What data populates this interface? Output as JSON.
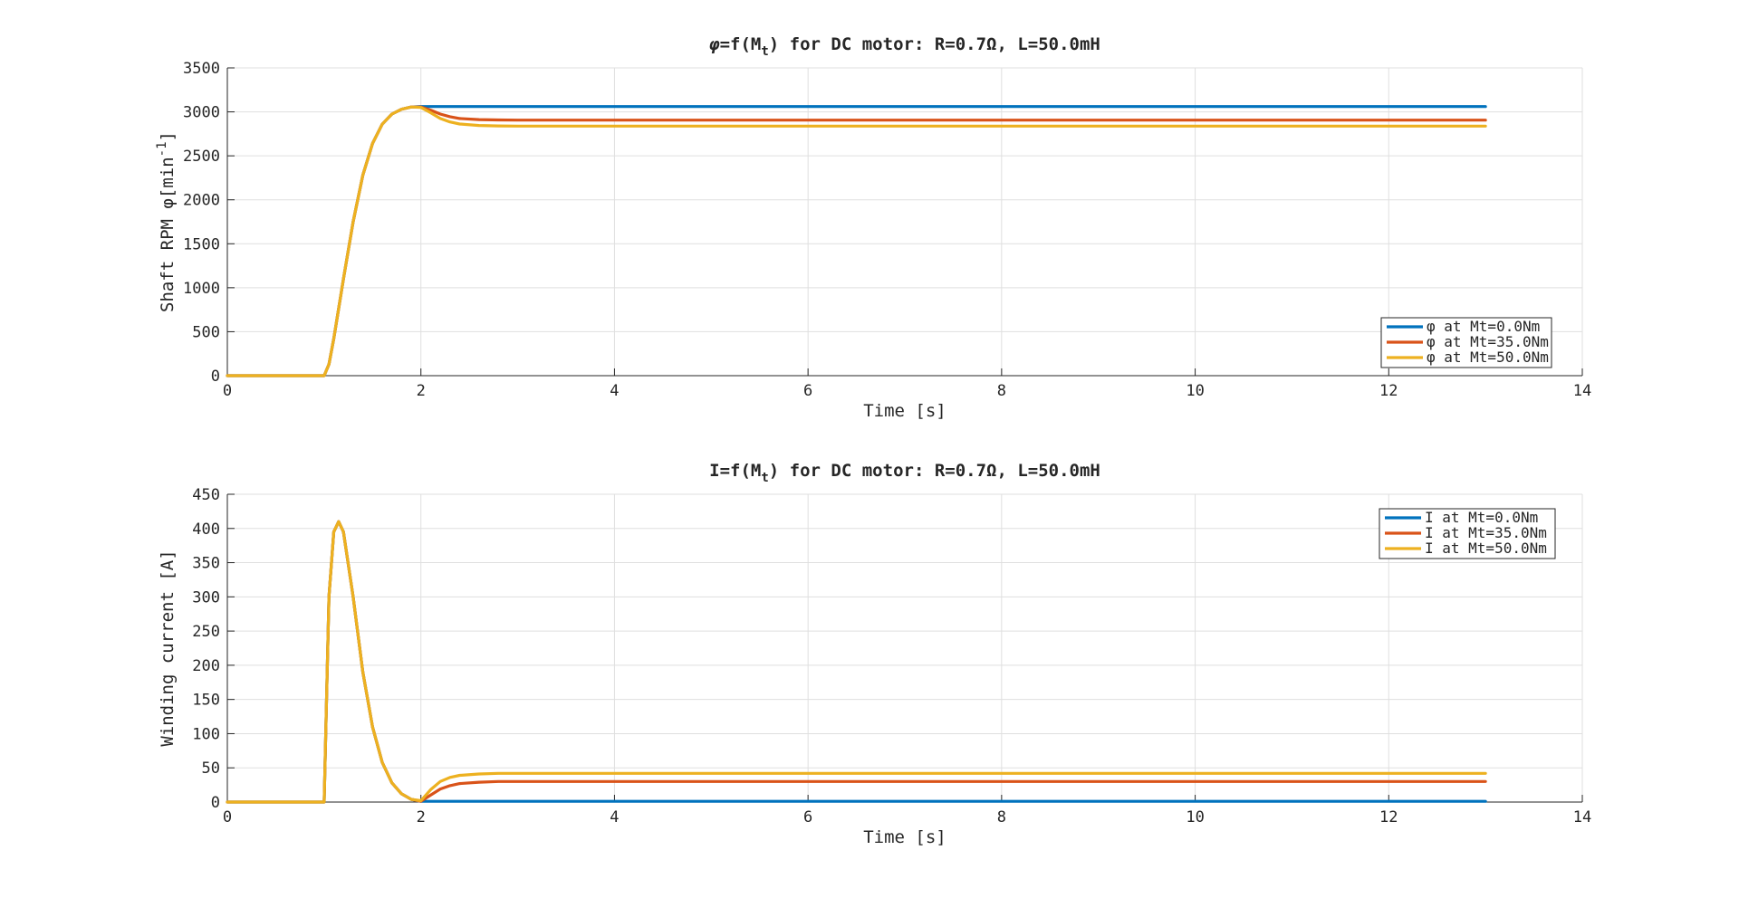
{
  "chart_data": [
    {
      "type": "line",
      "title_prefix": "φ",
      "title_main": "=f(M",
      "title_sub": "t",
      "title_rest": ") for DC motor: R=0.7Ω, L=50.0mH",
      "xlabel": "Time [s]",
      "ylabel_main": "Shaft RPM φ[min",
      "ylabel_sup": "-1",
      "ylabel_end": "]",
      "xlim": [
        0,
        14
      ],
      "ylim": [
        0,
        3500
      ],
      "xticks": [
        0,
        2,
        4,
        6,
        8,
        10,
        12,
        14
      ],
      "yticks": [
        0,
        500,
        1000,
        1500,
        2000,
        2500,
        3000,
        3500
      ],
      "grid": true,
      "legend_position": "bottom-right",
      "series": [
        {
          "name": "φ  at Mt=0.0Nm",
          "color": "#0072BD",
          "x": [
            0,
            1.0,
            1.05,
            1.1,
            1.2,
            1.3,
            1.4,
            1.5,
            1.6,
            1.7,
            1.8,
            1.9,
            2.0,
            13.0
          ],
          "y": [
            0,
            0,
            130,
            420,
            1100,
            1750,
            2280,
            2640,
            2860,
            2975,
            3030,
            3055,
            3060,
            3060
          ]
        },
        {
          "name": "φ  at Mt=35.0Nm",
          "color": "#D95319",
          "x": [
            0,
            1.0,
            1.05,
            1.1,
            1.2,
            1.3,
            1.4,
            1.5,
            1.6,
            1.7,
            1.8,
            1.9,
            2.0,
            2.1,
            2.2,
            2.3,
            2.4,
            2.6,
            2.8,
            3.0,
            13.0
          ],
          "y": [
            0,
            0,
            130,
            420,
            1100,
            1750,
            2280,
            2640,
            2860,
            2975,
            3030,
            3055,
            3055,
            3020,
            2975,
            2945,
            2925,
            2912,
            2908,
            2906,
            2906
          ]
        },
        {
          "name": "φ  at Mt=50.0Nm",
          "color": "#EDB120",
          "x": [
            0,
            1.0,
            1.05,
            1.1,
            1.2,
            1.3,
            1.4,
            1.5,
            1.6,
            1.7,
            1.8,
            1.9,
            2.0,
            2.1,
            2.2,
            2.3,
            2.4,
            2.6,
            2.8,
            3.0,
            13.0
          ],
          "y": [
            0,
            0,
            130,
            420,
            1100,
            1750,
            2280,
            2640,
            2860,
            2975,
            3030,
            3055,
            3050,
            2990,
            2925,
            2885,
            2862,
            2845,
            2840,
            2838,
            2838
          ]
        }
      ]
    },
    {
      "type": "line",
      "title_prefix": "",
      "title_main": "I=f(M",
      "title_sub": "t",
      "title_rest": ") for DC motor: R=0.7Ω, L=50.0mH",
      "xlabel": "Time [s]",
      "ylabel_main": "Winding current [A]",
      "ylabel_sup": "",
      "ylabel_end": "",
      "xlim": [
        0,
        14
      ],
      "ylim": [
        0,
        450
      ],
      "xticks": [
        0,
        2,
        4,
        6,
        8,
        10,
        12,
        14
      ],
      "yticks": [
        0,
        50,
        100,
        150,
        200,
        250,
        300,
        350,
        400,
        450
      ],
      "grid": true,
      "legend_position": "top-right",
      "series": [
        {
          "name": "I at Mt=0.0Nm",
          "color": "#0072BD",
          "x": [
            0,
            1.0,
            1.02,
            1.05,
            1.1,
            1.15,
            1.2,
            1.3,
            1.4,
            1.5,
            1.6,
            1.7,
            1.8,
            1.9,
            2.0,
            13.0
          ],
          "y": [
            0,
            0,
            120,
            300,
            395,
            410,
            395,
            300,
            190,
            110,
            58,
            28,
            12,
            4,
            1,
            1
          ]
        },
        {
          "name": "I at Mt=35.0Nm",
          "color": "#D95319",
          "x": [
            0,
            1.0,
            1.02,
            1.05,
            1.1,
            1.15,
            1.2,
            1.3,
            1.4,
            1.5,
            1.6,
            1.7,
            1.8,
            1.9,
            2.0,
            2.1,
            2.2,
            2.3,
            2.4,
            2.6,
            2.8,
            3.0,
            13.0
          ],
          "y": [
            0,
            0,
            120,
            300,
            395,
            410,
            395,
            300,
            190,
            110,
            58,
            28,
            12,
            4,
            1,
            10,
            19,
            24,
            27,
            29,
            30,
            30,
            30
          ]
        },
        {
          "name": "I at Mt=50.0Nm",
          "color": "#EDB120",
          "x": [
            0,
            1.0,
            1.02,
            1.05,
            1.1,
            1.15,
            1.2,
            1.3,
            1.4,
            1.5,
            1.6,
            1.7,
            1.8,
            1.9,
            2.0,
            2.1,
            2.2,
            2.3,
            2.4,
            2.6,
            2.8,
            3.0,
            13.0
          ],
          "y": [
            0,
            0,
            120,
            300,
            395,
            410,
            395,
            300,
            190,
            110,
            58,
            28,
            12,
            4,
            2,
            18,
            30,
            36,
            39,
            41,
            42,
            42,
            42
          ]
        }
      ]
    }
  ]
}
